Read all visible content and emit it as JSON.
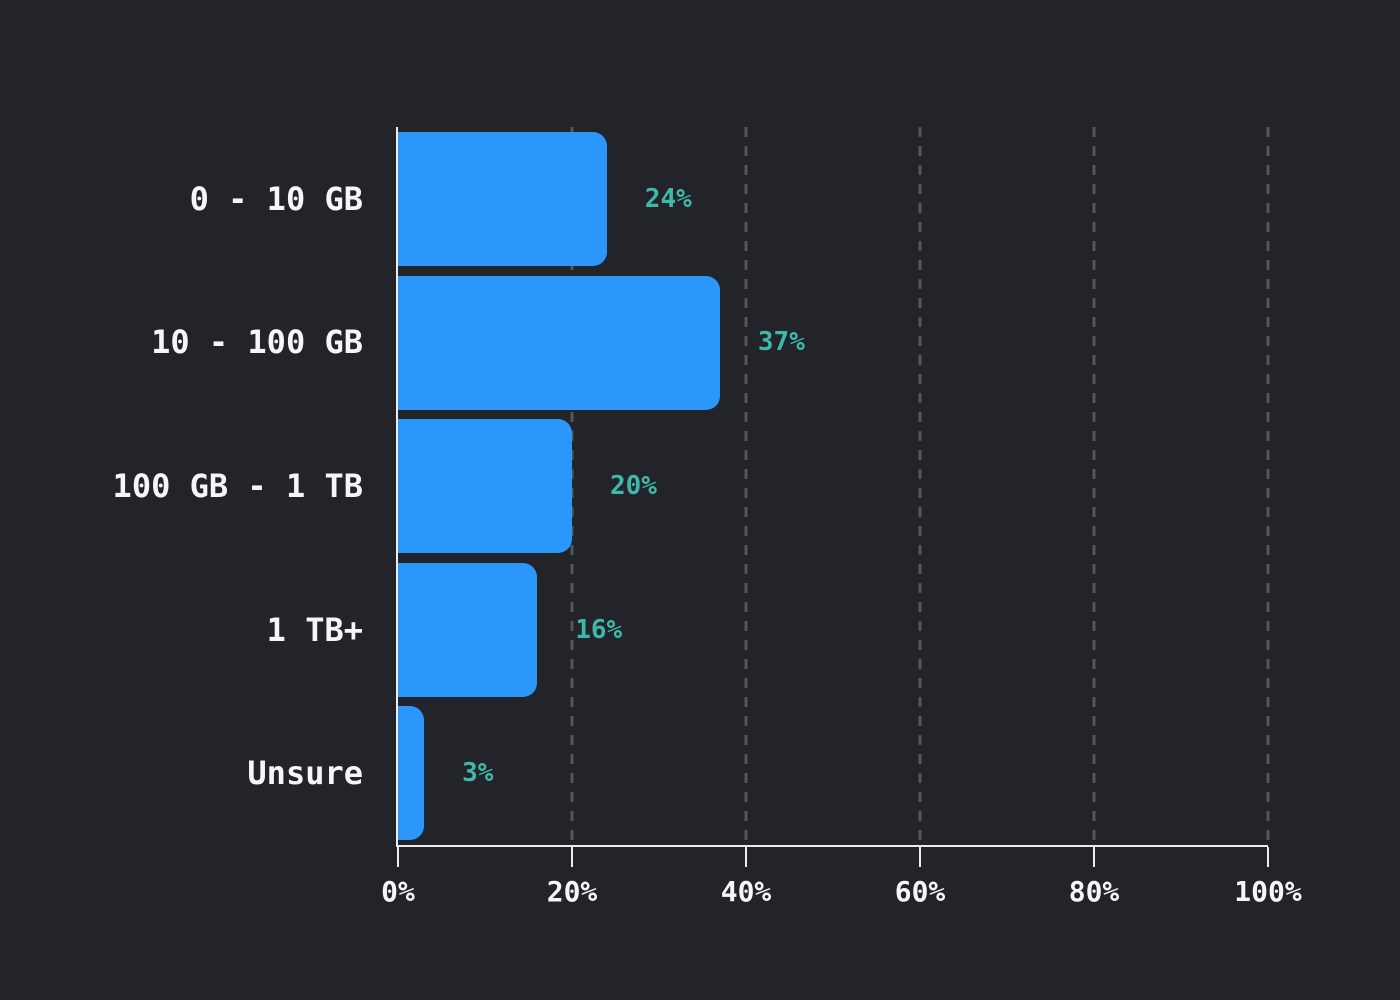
{
  "chart_data": {
    "type": "bar",
    "orientation": "horizontal",
    "title": "",
    "categories": [
      "0 - 10 GB",
      "10 - 100 GB",
      "100 GB - 1 TB",
      "1 TB+",
      "Unsure"
    ],
    "values": [
      24,
      37,
      20,
      16,
      3
    ],
    "value_labels": [
      "24%",
      "37%",
      "20%",
      "16%",
      "3%"
    ],
    "x_tick_labels": [
      "0%",
      "20%",
      "40%",
      "60%",
      "80%",
      "100%"
    ],
    "x_tick_values": [
      0,
      20,
      40,
      60,
      80,
      100
    ],
    "xlim": [
      0,
      100
    ],
    "grid": {
      "axis": "x",
      "style": "dashed",
      "positions": [
        20,
        40,
        60,
        80,
        100
      ]
    },
    "legend": "none",
    "colors": {
      "background": "#222429",
      "bar": "#2b97fa",
      "value_label": "#3fb8ac",
      "category_label": "#f5f6f7",
      "axis": "#ececee",
      "grid": "#53565b"
    }
  }
}
